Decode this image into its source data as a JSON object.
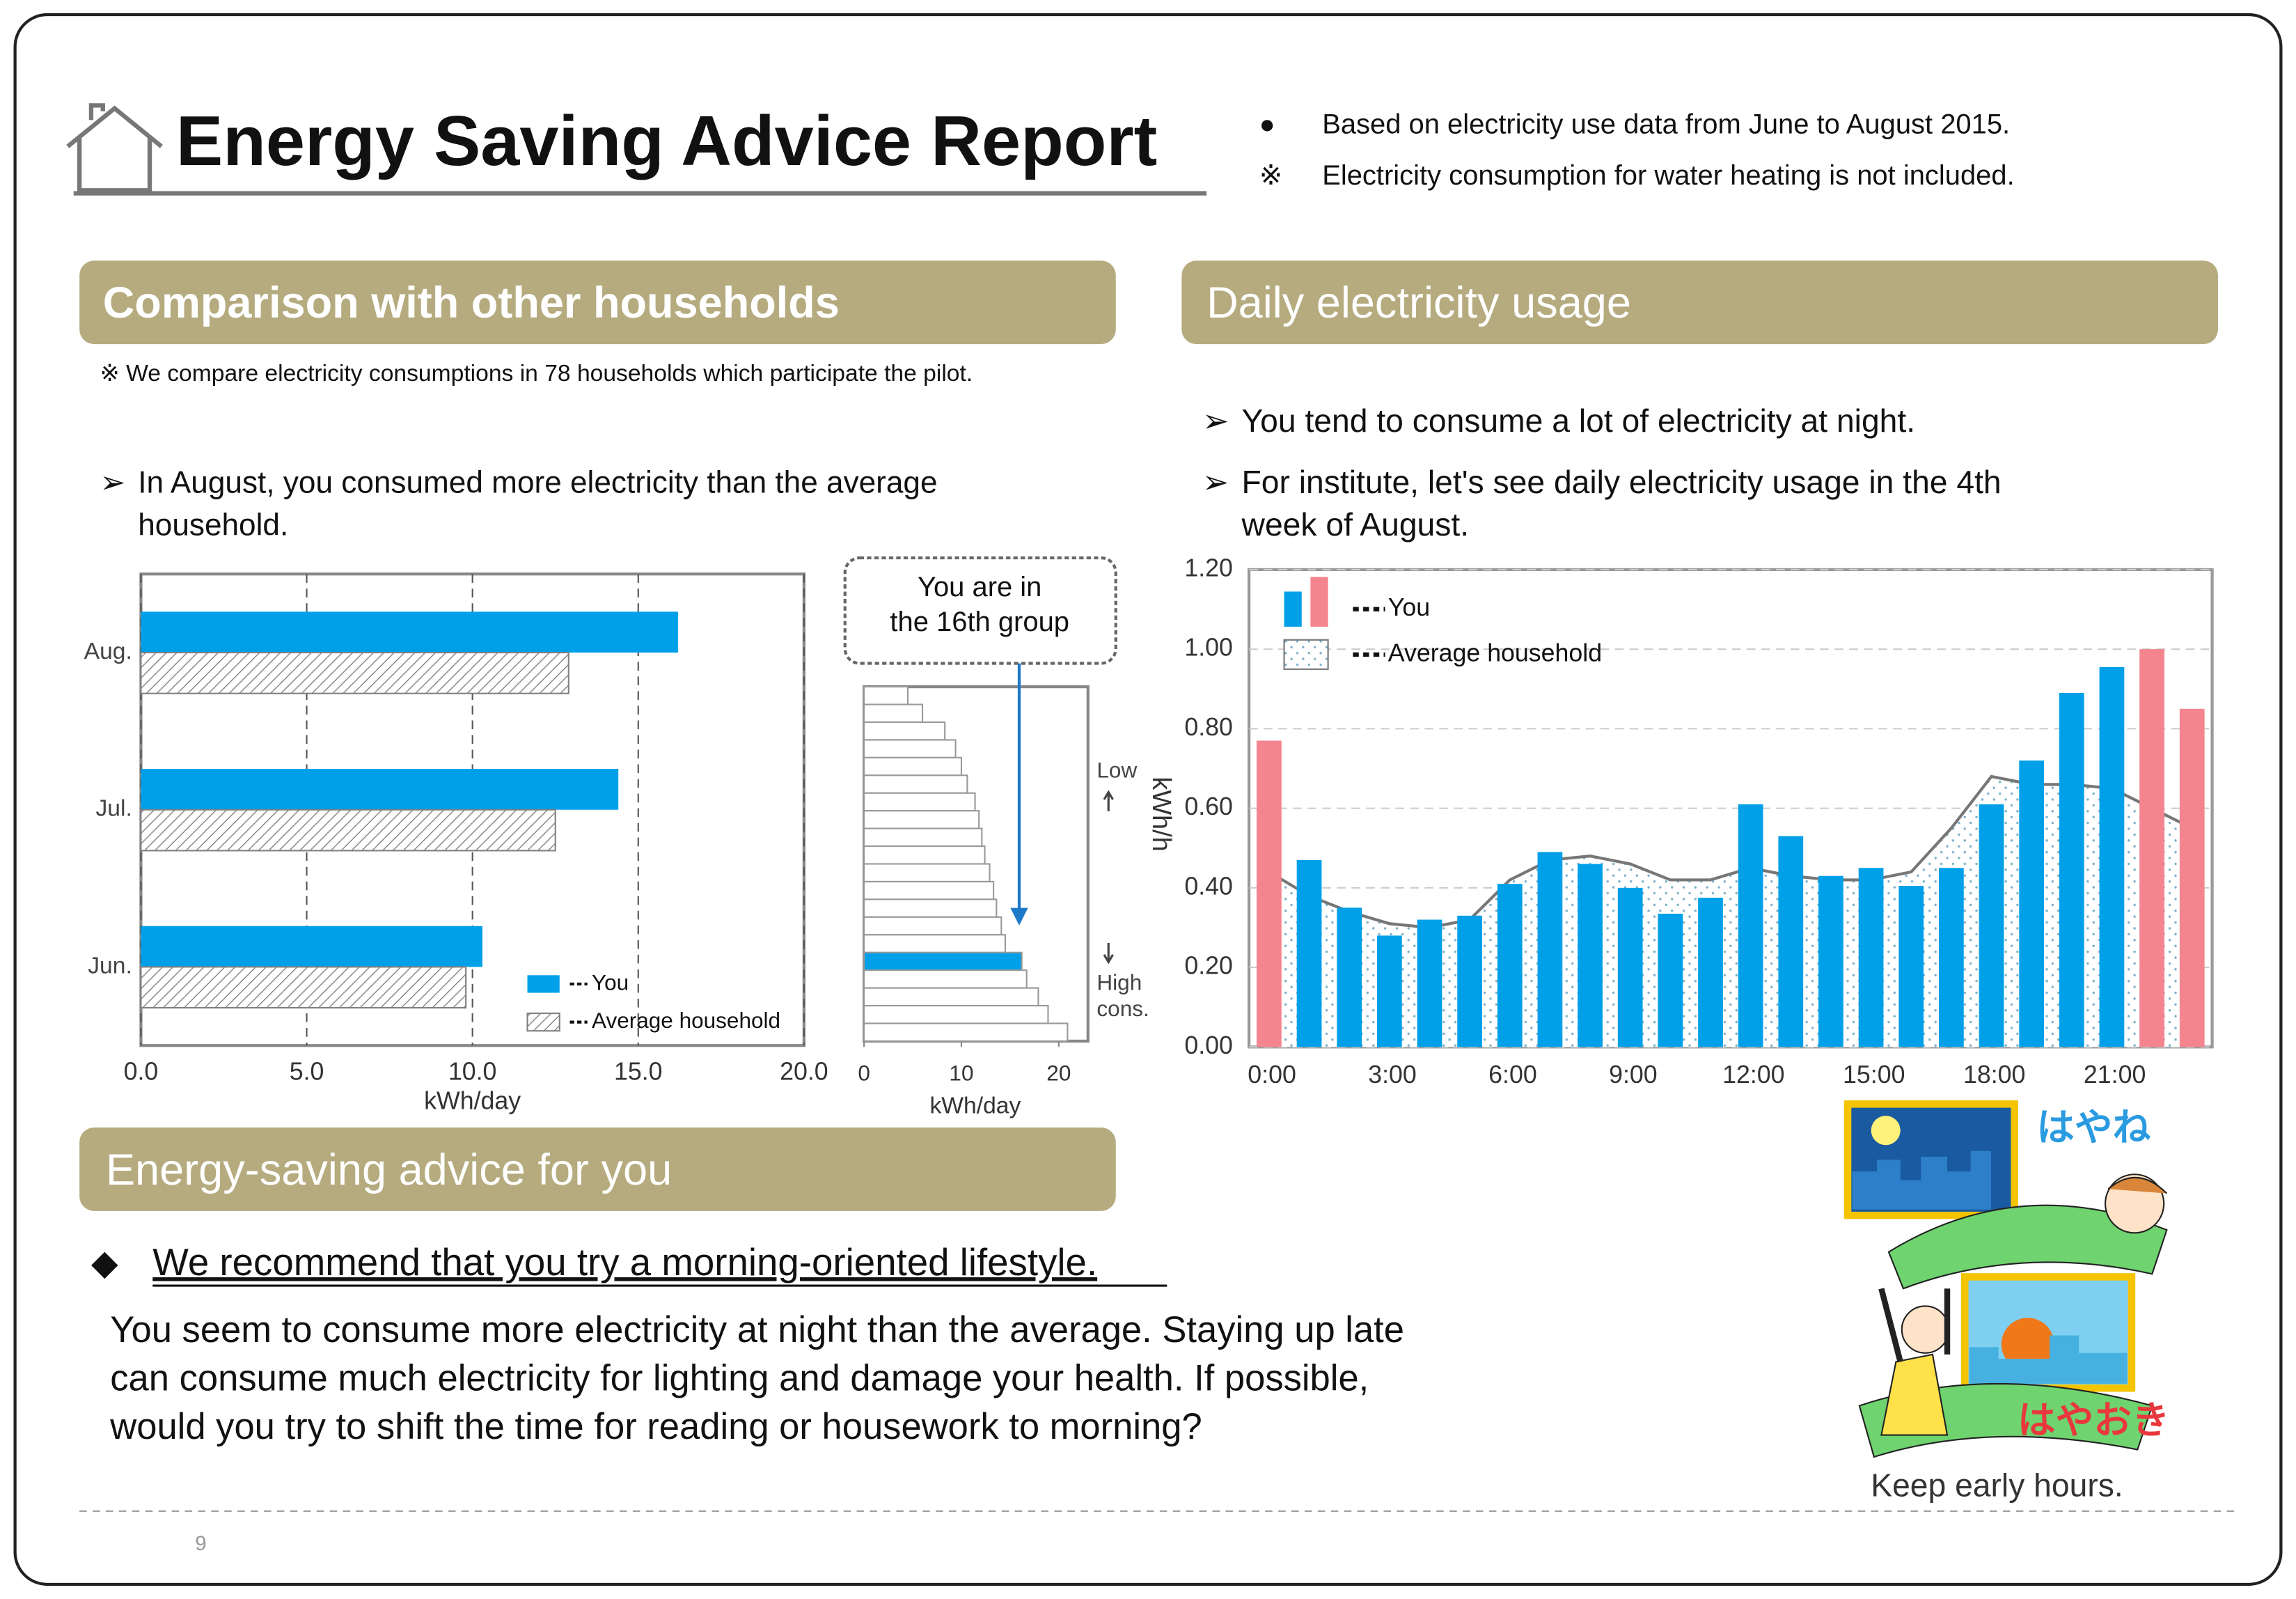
{
  "header": {
    "title": "Energy Saving Advice Report",
    "notes": [
      {
        "mark": "●",
        "text": "Based on electricity use data from June to August 2015."
      },
      {
        "mark": "※",
        "text": "Electricity consumption for water heating is not included."
      }
    ]
  },
  "comparison": {
    "title": "Comparison with other households",
    "note": "※ We compare electricity consumptions in 78 households which participate the pilot.",
    "bullet": [
      "In August, you consumed more electricity than the average",
      "household."
    ]
  },
  "daily": {
    "title": "Daily electricity usage",
    "bullets": [
      [
        "You tend to consume a lot of electricity at night."
      ],
      [
        "For institute, let's see daily electricity usage in the 4th",
        "week of August."
      ]
    ]
  },
  "advice": {
    "title": "Energy-saving advice for you",
    "headline": "We recommend that you try a morning-oriented lifestyle.",
    "body": [
      "You seem to consume more electricity at night than the average. Staying up late",
      "can consume much electricity for lighting and damage your health. If possible,",
      "would you try to shift the time for reading or housework to morning?"
    ]
  },
  "illustration": {
    "top_label": "はやね",
    "bottom_label": "はやおき",
    "caption": "Keep early hours."
  },
  "footer": {
    "page": "9"
  },
  "chart_data": [
    {
      "type": "hbar",
      "categories": [
        "Aug.",
        "Jul.",
        "Jun."
      ],
      "series": [
        {
          "name": "You",
          "color": "#00a0e9",
          "values": [
            16.2,
            14.4,
            10.3
          ]
        },
        {
          "name": "Average household",
          "color": "#808080",
          "pattern": "hatch",
          "values": [
            12.9,
            12.5,
            9.8
          ]
        }
      ],
      "xlim": [
        0,
        20
      ],
      "xticks": [
        {
          "value": 0,
          "label": "0.0"
        },
        {
          "value": 5,
          "label": "5.0"
        },
        {
          "value": 10,
          "label": "10.0"
        },
        {
          "value": 15,
          "label": "15.0"
        },
        {
          "value": 20,
          "label": "20.0"
        }
      ],
      "xlabel": "kWh/day",
      "grid": true
    },
    {
      "type": "rank",
      "annotation": [
        "You are in",
        "the 16th group"
      ],
      "values": [
        4.5,
        6,
        8.3,
        9.4,
        10,
        10.6,
        11.4,
        11.8,
        12.1,
        12.4,
        12.9,
        13.3,
        13.6,
        14.1,
        14.5,
        16.2,
        16.7,
        17.9,
        18.9,
        20.9
      ],
      "colors": [
        "#ffffff",
        "#ffffff",
        "#ffffff",
        "#ffffff",
        "#ffffff",
        "#ffffff",
        "#ffffff",
        "#ffffff",
        "#ffffff",
        "#ffffff",
        "#ffffff",
        "#ffffff",
        "#ffffff",
        "#ffffff",
        "#ffffff",
        "#00a0e9",
        "#ffffff",
        "#ffffff",
        "#ffffff",
        "#ffffff"
      ],
      "xlim": [
        0,
        23
      ],
      "xticks": [
        0,
        10,
        20
      ],
      "xlabel": "kWh/day",
      "low_label": "Low",
      "high_label": [
        "High",
        "cons."
      ]
    },
    {
      "type": "bar_line",
      "categories": [
        "0:00",
        null,
        null,
        "3:00",
        null,
        null,
        "6:00",
        null,
        null,
        "9:00",
        null,
        null,
        "12:00",
        null,
        null,
        "15:00",
        null,
        null,
        "18:00",
        null,
        null,
        "21:00",
        null,
        null
      ],
      "series": [
        {
          "name": "You",
          "colors": [
            "#f4858e",
            "#00a0e9",
            "#00a0e9",
            "#00a0e9",
            "#00a0e9",
            "#00a0e9",
            "#00a0e9",
            "#00a0e9",
            "#00a0e9",
            "#00a0e9",
            "#00a0e9",
            "#00a0e9",
            "#00a0e9",
            "#00a0e9",
            "#00a0e9",
            "#00a0e9",
            "#00a0e9",
            "#00a0e9",
            "#00a0e9",
            "#00a0e9",
            "#00a0e9",
            "#00a0e9",
            "#f4858e",
            "#f4858e"
          ],
          "values": [
            0.77,
            0.47,
            0.35,
            0.28,
            0.32,
            0.33,
            0.41,
            0.49,
            0.46,
            0.4,
            0.335,
            0.375,
            0.61,
            0.53,
            0.43,
            0.45,
            0.405,
            0.45,
            0.61,
            0.72,
            0.89,
            0.955,
            1.0,
            0.85
          ]
        },
        {
          "name": "Average household",
          "type": "area",
          "color": "#777777",
          "values": [
            0.44,
            0.38,
            0.34,
            0.31,
            0.3,
            0.32,
            0.42,
            0.47,
            0.48,
            0.46,
            0.42,
            0.42,
            0.45,
            0.43,
            0.42,
            0.42,
            0.44,
            0.55,
            0.68,
            0.66,
            0.66,
            0.65,
            0.6,
            0.55
          ]
        }
      ],
      "ylim": [
        0,
        1.2
      ],
      "yticks": [
        {
          "value": 0,
          "label": "0.00"
        },
        {
          "value": 0.2,
          "label": "0.20"
        },
        {
          "value": 0.4,
          "label": "0.40"
        },
        {
          "value": 0.6,
          "label": "0.60"
        },
        {
          "value": 0.8,
          "label": "0.80"
        },
        {
          "value": 1.0,
          "label": "1.00"
        },
        {
          "value": 1.2,
          "label": "1.20"
        }
      ],
      "ylabel": "kWh/h",
      "grid": true
    }
  ]
}
